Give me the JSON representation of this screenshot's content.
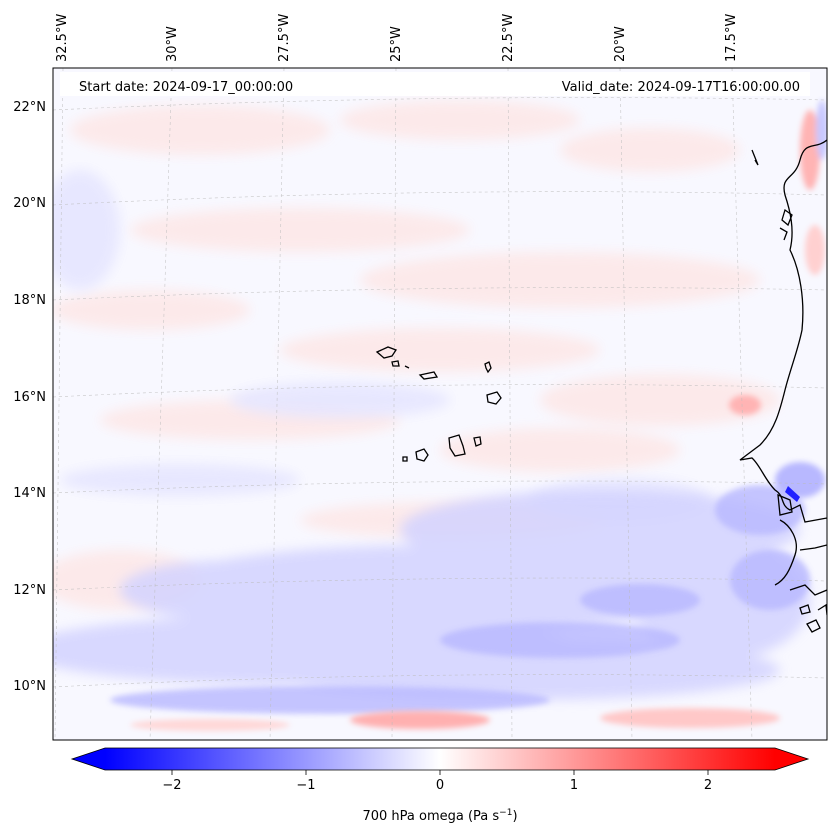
{
  "map": {
    "start_date": "Start date: 2024-09-17_00:00:00",
    "valid_date": "Valid_date: 2024-09-17T16:00:00.00",
    "lon_labels": [
      "32.5°W",
      "30°W",
      "27.5°W",
      "25°W",
      "22.5°W",
      "20°W",
      "17.5°W"
    ],
    "lat_labels": [
      "22°N",
      "20°N",
      "18°N",
      "16°N",
      "14°N",
      "12°N",
      "10°N"
    ],
    "colorbar": {
      "ticks": [
        "−2",
        "−1",
        "0",
        "1",
        "2"
      ],
      "tick_values": [
        -2,
        -1,
        0,
        1,
        2
      ],
      "range": [
        -2.5,
        2.5
      ],
      "label_main": "700 hPa omega (Pa s",
      "label_exp": "−1",
      "label_end": ")",
      "cmap": "bwr",
      "color_low": "#0000ff",
      "color_mid": "#ffffff",
      "color_high": "#ff0000",
      "extend": "both"
    }
  }
}
